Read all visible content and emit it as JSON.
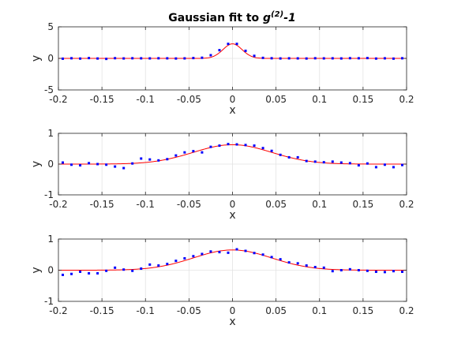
{
  "figure": {
    "title_main": "Gaussian fit to ",
    "title_symbol": "g",
    "title_sup": "(2)",
    "title_tail": "-1"
  },
  "chart_data": [
    {
      "type": "scatter",
      "xlabel": "x",
      "ylabel": "y",
      "xlim": [
        -0.2,
        0.2
      ],
      "ylim": [
        -5,
        5
      ],
      "xticks": [
        -0.2,
        -0.15,
        -0.1,
        -0.05,
        0,
        0.05,
        0.1,
        0.15,
        0.2
      ],
      "xtick_labels": [
        "-0.2",
        "-0.15",
        "-0.1",
        "-0.05",
        "0",
        "0.05",
        "0.1",
        "0.15",
        "0.2"
      ],
      "yticks": [
        -5,
        0,
        5
      ],
      "ytick_labels": [
        "-5",
        "0",
        "5"
      ],
      "grid": true,
      "series": [
        {
          "kind": "points",
          "color": "#0000ff",
          "x": [
            -0.195,
            -0.185,
            -0.175,
            -0.165,
            -0.155,
            -0.145,
            -0.135,
            -0.125,
            -0.115,
            -0.105,
            -0.095,
            -0.085,
            -0.075,
            -0.065,
            -0.055,
            -0.045,
            -0.035,
            -0.025,
            -0.015,
            -0.005,
            0.005,
            0.015,
            0.025,
            0.035,
            0.045,
            0.055,
            0.065,
            0.075,
            0.085,
            0.095,
            0.105,
            0.115,
            0.125,
            0.135,
            0.145,
            0.155,
            0.165,
            0.175,
            0.185,
            0.195
          ],
          "y": [
            -0.05,
            0.02,
            -0.03,
            0.05,
            -0.02,
            -0.08,
            0.03,
            -0.01,
            0.02,
            0.01,
            0.0,
            0.02,
            0.01,
            -0.02,
            0.0,
            0.05,
            0.1,
            0.5,
            1.3,
            2.3,
            2.3,
            1.2,
            0.4,
            0.08,
            0.02,
            -0.01,
            0.01,
            0.0,
            -0.02,
            0.02,
            0.0,
            0.01,
            -0.01,
            0.03,
            0.02,
            0.05,
            -0.03,
            0.01,
            -0.04,
            0.02
          ]
        },
        {
          "kind": "gaussian-fit",
          "color": "#ff0000",
          "amplitude": 2.3,
          "center": 0.0,
          "sigma": 0.011,
          "offset": 0.0
        }
      ]
    },
    {
      "type": "scatter",
      "xlabel": "x",
      "ylabel": "y",
      "xlim": [
        -0.2,
        0.2
      ],
      "ylim": [
        -1,
        1
      ],
      "xticks": [
        -0.2,
        -0.15,
        -0.1,
        -0.05,
        0,
        0.05,
        0.1,
        0.15,
        0.2
      ],
      "xtick_labels": [
        "-0.2",
        "-0.15",
        "-0.1",
        "-0.05",
        "0",
        "0.05",
        "0.1",
        "0.15",
        "0.2"
      ],
      "yticks": [
        -1,
        0,
        1
      ],
      "ytick_labels": [
        "-1",
        "0",
        "1"
      ],
      "grid": true,
      "series": [
        {
          "kind": "points",
          "color": "#0000ff",
          "x": [
            -0.195,
            -0.185,
            -0.175,
            -0.165,
            -0.155,
            -0.145,
            -0.135,
            -0.125,
            -0.115,
            -0.105,
            -0.095,
            -0.085,
            -0.075,
            -0.065,
            -0.055,
            -0.045,
            -0.035,
            -0.025,
            -0.015,
            -0.005,
            0.005,
            0.015,
            0.025,
            0.035,
            0.045,
            0.055,
            0.065,
            0.075,
            0.085,
            0.095,
            0.105,
            0.115,
            0.125,
            0.135,
            0.145,
            0.155,
            0.165,
            0.175,
            0.185,
            0.195
          ],
          "y": [
            0.05,
            -0.02,
            -0.04,
            0.03,
            0.0,
            -0.02,
            -0.08,
            -0.13,
            0.02,
            0.18,
            0.15,
            0.12,
            0.16,
            0.28,
            0.38,
            0.42,
            0.38,
            0.56,
            0.6,
            0.65,
            0.64,
            0.62,
            0.6,
            0.52,
            0.43,
            0.3,
            0.22,
            0.22,
            0.1,
            0.08,
            0.06,
            0.08,
            0.05,
            0.03,
            -0.04,
            0.02,
            -0.1,
            -0.02,
            -0.1,
            -0.03
          ]
        },
        {
          "kind": "gaussian-fit",
          "color": "#ff0000",
          "amplitude": 0.63,
          "center": 0.0,
          "sigma": 0.045,
          "offset": 0.0
        }
      ]
    },
    {
      "type": "scatter",
      "xlabel": "x",
      "ylabel": "y",
      "xlim": [
        -0.2,
        0.2
      ],
      "ylim": [
        -1,
        1
      ],
      "xticks": [
        -0.2,
        -0.15,
        -0.1,
        -0.05,
        0,
        0.05,
        0.1,
        0.15,
        0.2
      ],
      "xtick_labels": [
        "-0.2",
        "-0.15",
        "-0.1",
        "-0.05",
        "0",
        "0.05",
        "0.1",
        "0.15",
        "0.2"
      ],
      "yticks": [
        -1,
        0,
        1
      ],
      "ytick_labels": [
        "-1",
        "0",
        "1"
      ],
      "grid": true,
      "series": [
        {
          "kind": "points",
          "color": "#0000ff",
          "x": [
            -0.195,
            -0.185,
            -0.175,
            -0.165,
            -0.155,
            -0.145,
            -0.135,
            -0.125,
            -0.115,
            -0.105,
            -0.095,
            -0.085,
            -0.075,
            -0.065,
            -0.055,
            -0.045,
            -0.035,
            -0.025,
            -0.015,
            -0.005,
            0.005,
            0.015,
            0.025,
            0.035,
            0.045,
            0.055,
            0.065,
            0.075,
            0.085,
            0.095,
            0.105,
            0.115,
            0.125,
            0.135,
            0.145,
            0.155,
            0.165,
            0.175,
            0.185,
            0.195
          ],
          "y": [
            -0.15,
            -0.12,
            -0.05,
            -0.1,
            -0.1,
            -0.02,
            0.08,
            0.02,
            -0.02,
            0.05,
            0.18,
            0.15,
            0.2,
            0.3,
            0.38,
            0.45,
            0.52,
            0.6,
            0.58,
            0.56,
            0.67,
            0.62,
            0.55,
            0.5,
            0.42,
            0.35,
            0.25,
            0.22,
            0.15,
            0.1,
            0.08,
            -0.03,
            0.0,
            0.03,
            0.0,
            -0.02,
            -0.05,
            -0.06,
            -0.03,
            -0.05
          ]
        },
        {
          "kind": "gaussian-fit",
          "color": "#ff0000",
          "amplitude": 0.65,
          "center": 0.0,
          "sigma": 0.045,
          "offset": 0.0
        }
      ]
    }
  ]
}
